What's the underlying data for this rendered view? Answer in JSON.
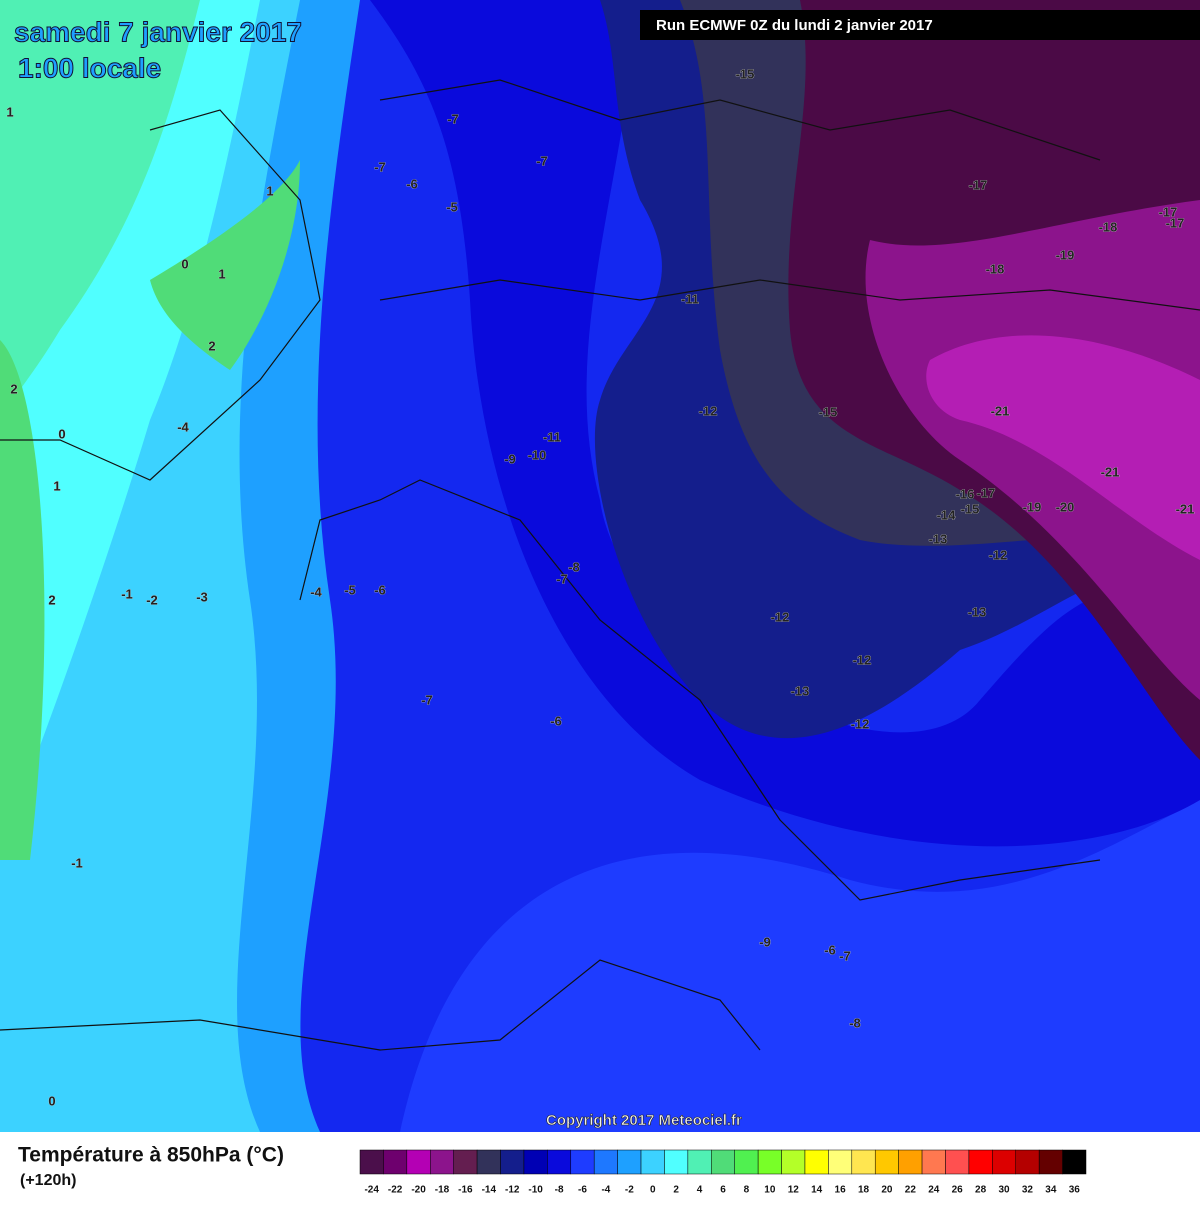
{
  "header": {
    "date": "samedi 7 janvier 2017",
    "time": "1:00 locale",
    "run": "Run ECMWF 0Z du lundi 2 janvier 2017"
  },
  "map": {
    "copyright": "Copyright 2017 Meteociel.fr",
    "labels": [
      -15,
      -7,
      -7,
      -7,
      -6,
      -5,
      1,
      1,
      0,
      1,
      2,
      2,
      -4,
      0,
      1,
      -17,
      -17,
      -17,
      -18,
      -19,
      -18,
      -11,
      -12,
      -15,
      -21,
      -11,
      -10,
      -9,
      -21,
      -16,
      -17,
      -15,
      -14,
      -19,
      -20,
      -21,
      -13,
      -12,
      -8,
      -7,
      -1,
      -2,
      -3,
      -4,
      -5,
      -6,
      2,
      -12,
      -13,
      -12,
      -13,
      -7,
      -6,
      -12,
      -1,
      -9,
      -6,
      -7,
      -8,
      0
    ]
  },
  "legend": {
    "title": "Température à 850hPa (°C)",
    "subtitle": "(+120h)",
    "ticks": [
      -24,
      -22,
      -20,
      -18,
      -16,
      -14,
      -12,
      -10,
      -8,
      -6,
      -4,
      -2,
      0,
      2,
      4,
      6,
      8,
      10,
      12,
      14,
      16,
      18,
      20,
      22,
      24,
      26,
      28,
      30,
      32,
      34,
      36
    ],
    "colors": [
      "#4b0f4b",
      "#6e006e",
      "#b400b4",
      "#8c148c",
      "#641e50",
      "#32325a",
      "#141e8c",
      "#0000b4",
      "#0a0adc",
      "#1e3cff",
      "#1e78ff",
      "#1ea0ff",
      "#3cd2ff",
      "#50ffff",
      "#50f0b4",
      "#50dc78",
      "#50f050",
      "#78ff28",
      "#b4ff28",
      "#ffff00",
      "#ffff78",
      "#ffe650",
      "#ffc800",
      "#ffa000",
      "#ff7850",
      "#ff5050",
      "#ff0000",
      "#dc0000",
      "#b40000",
      "#640000",
      "#000000"
    ]
  }
}
